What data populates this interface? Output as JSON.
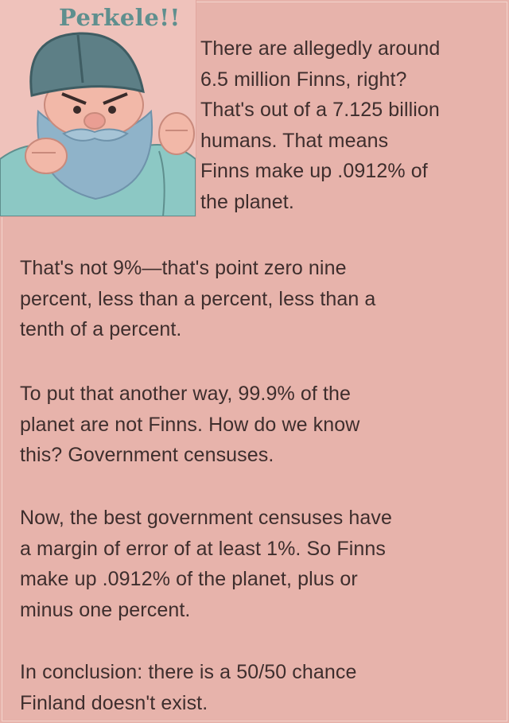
{
  "logo": {
    "text": "Perkele!!",
    "color": "#5f8f8e"
  },
  "paragraphs": [
    {
      "lines": [
        "There are allegedly around",
        "6.5 million Finns, right?",
        "That's out of a 7.125 billion",
        "humans. That means",
        "Finns make up .0912% of",
        "the planet."
      ]
    },
    {
      "lines": [
        "That's not 9%—that's point zero nine",
        "percent, less than a percent, less than a",
        "tenth of a percent."
      ]
    },
    {
      "lines": [
        "To put that another way, 99.9% of the",
        "planet are not Finns. How do we know",
        "this? Government censuses."
      ]
    },
    {
      "lines": [
        "Now, the best government censuses have",
        "a margin of error of at least 1%. So Finns",
        "make up .0912% of the planet, plus or",
        "minus one percent."
      ]
    },
    {
      "lines": [
        "In conclusion: there is a 50/50 chance",
        "Finland doesn't exist."
      ]
    }
  ],
  "colors": {
    "background": "#e7b3ab",
    "text": "#3e2e2d",
    "helmet": "#5d7f86",
    "beard": "#8fb3c9"
  }
}
